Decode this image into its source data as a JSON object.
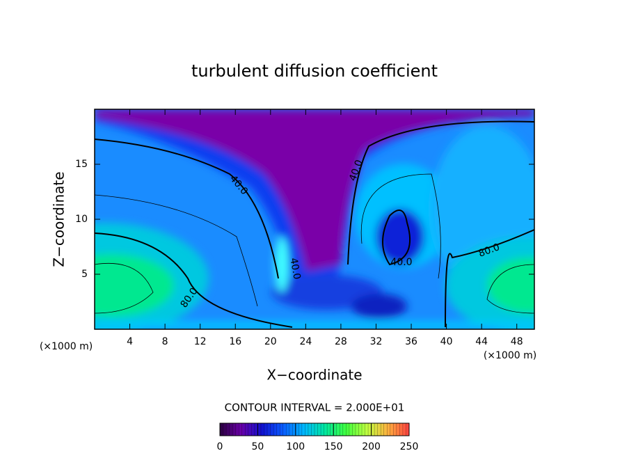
{
  "chart_data": {
    "type": "contour",
    "title": "turbulent diffusion coefficient",
    "x_label": "X−coordinate",
    "y_label": "Z−coordinate",
    "x_unit": "(×1000 m)",
    "y_unit": "(×1000 m)",
    "xlim": [
      0,
      50
    ],
    "ylim": [
      0,
      20
    ],
    "xticks": [
      4,
      8,
      12,
      16,
      20,
      24,
      28,
      32,
      36,
      40,
      44,
      48
    ],
    "yticks": [
      5,
      10,
      15
    ],
    "contour_interval_label": "CONTOUR INTERVAL = 2.000E+01",
    "contour_labels": [
      "40.0",
      "40.0",
      "40.0",
      "40.0",
      "80.0",
      "80.0"
    ],
    "colorbar": {
      "clim": [
        0,
        250
      ],
      "ticks": [
        0,
        50,
        100,
        150,
        200,
        250
      ],
      "colors": [
        "#2a0040",
        "#6a00a8",
        "#1010d0",
        "#0a5cff",
        "#00b8ff",
        "#00e8a0",
        "#40ff40",
        "#c0ff40",
        "#ffb040",
        "#ff4040"
      ]
    }
  }
}
